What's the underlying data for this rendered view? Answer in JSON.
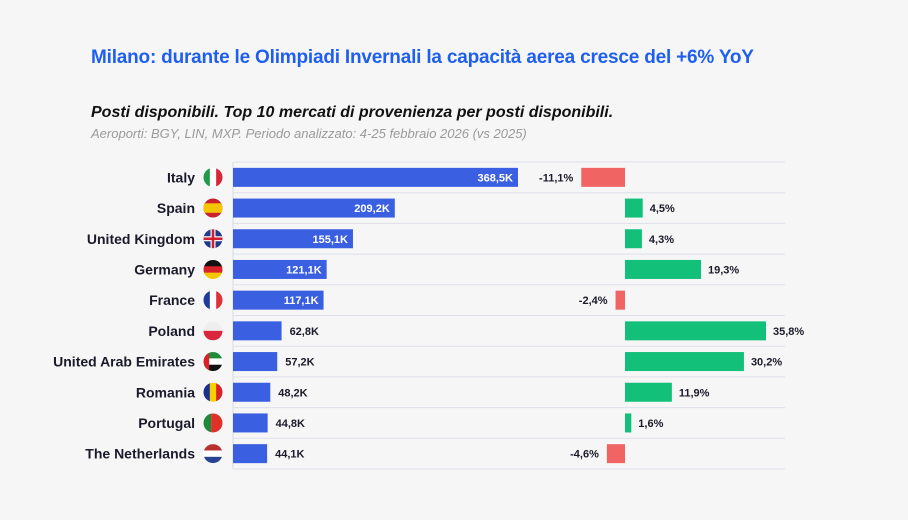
{
  "title": "Milano: durante le Olimpiadi Invernali la capacità aerea cresce del +6% YoY",
  "subtitle": "Posti disponibili. Top 10 mercati di provenienza per posti disponibili.",
  "note": "Aeroporti: BGY, LIN, MXP. Periodo analizzato: 4-25 febbraio 2026 (vs 2025)",
  "chart_data": {
    "type": "bar",
    "orientation": "horizontal",
    "categories": [
      "Italy",
      "Spain",
      "United Kingdom",
      "Germany",
      "France",
      "Poland",
      "United Arab Emirates",
      "Romania",
      "Portugal",
      "The Netherlands"
    ],
    "series": [
      {
        "unit": "K",
        "values": [
          368.5,
          209.2,
          155.1,
          121.1,
          117.1,
          62.8,
          57.2,
          48.2,
          44.8,
          44.1
        ],
        "labels": [
          "368,5K",
          "209,2K",
          "155,1K",
          "121,1K",
          "117,1K",
          "62,8K",
          "57,2K",
          "48,2K",
          "44,8K",
          "44,1K"
        ],
        "color": "#3a5fe0"
      },
      {
        "unit": "%",
        "values": [
          -11.1,
          4.5,
          4.3,
          19.3,
          -2.4,
          35.8,
          30.2,
          11.9,
          1.6,
          -4.6
        ],
        "labels": [
          "-11,1%",
          "4,5%",
          "4,3%",
          "19,3%",
          "-2,4%",
          "35,8%",
          "30,2%",
          "11,9%",
          "1,6%",
          "-4,6%"
        ],
        "positive_color": "#12c07a",
        "negative_color": "#f06464"
      }
    ],
    "flags": [
      "italy-flag",
      "spain-flag",
      "uk-flag",
      "germany-flag",
      "france-flag",
      "poland-flag",
      "uae-flag",
      "romania-flag",
      "portugal-flag",
      "netherlands-flag"
    ],
    "grid": false,
    "legend": "none"
  }
}
